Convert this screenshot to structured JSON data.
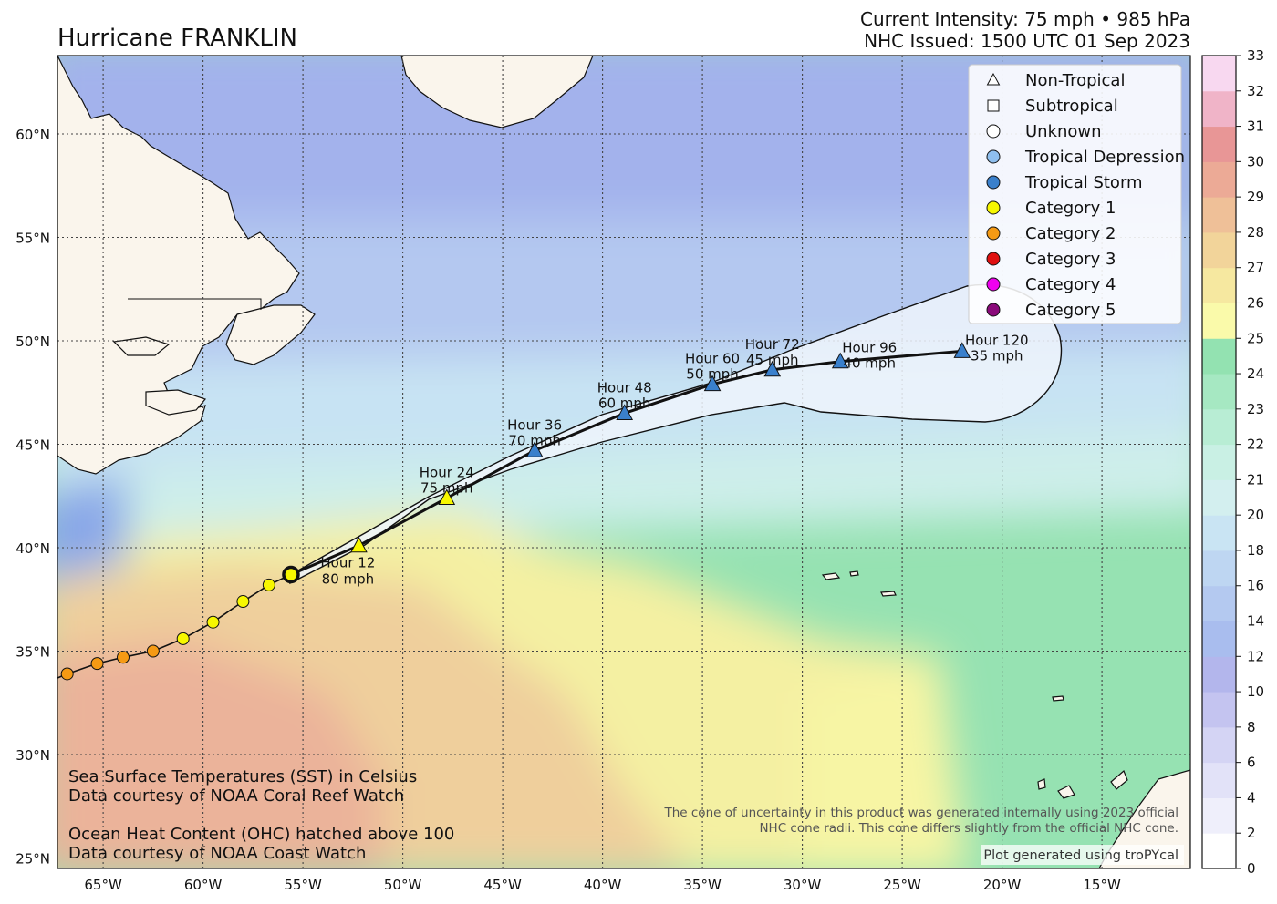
{
  "title": "Hurricane FRANKLIN",
  "intensity": "Current Intensity: 75 mph • 985 hPa",
  "issued": "NHC Issued: 1500 UTC 01 Sep 2023",
  "lat_labels": [
    "60°N",
    "55°N",
    "50°N",
    "45°N",
    "40°N",
    "35°N",
    "30°N",
    "25°N"
  ],
  "lon_labels": [
    "65°W",
    "60°W",
    "55°W",
    "50°W",
    "45°W",
    "40°W",
    "35°W",
    "30°W",
    "25°W",
    "20°W",
    "15°W"
  ],
  "legend": [
    {
      "label": "Non-Tropical",
      "symbol": "triangle-open",
      "color": "#ffffff"
    },
    {
      "label": "Subtropical",
      "symbol": "square-open",
      "color": "#ffffff"
    },
    {
      "label": "Unknown",
      "symbol": "circle-open",
      "color": "#ffffff"
    },
    {
      "label": "Tropical Depression",
      "symbol": "circle",
      "color": "#8fbfee"
    },
    {
      "label": "Tropical Storm",
      "symbol": "circle",
      "color": "#3a80cc"
    },
    {
      "label": "Category 1",
      "symbol": "circle",
      "color": "#f7f700"
    },
    {
      "label": "Category 2",
      "symbol": "circle",
      "color": "#f59a14"
    },
    {
      "label": "Category 3",
      "symbol": "circle",
      "color": "#e01010"
    },
    {
      "label": "Category 4",
      "symbol": "circle",
      "color": "#f000f0"
    },
    {
      "label": "Category 5",
      "symbol": "circle",
      "color": "#8a0a7a"
    }
  ],
  "forecast": [
    {
      "hour": "Hour 12",
      "wind": "80 mph",
      "lon": -52.2,
      "lat": 40.1,
      "cat": "Category 1"
    },
    {
      "hour": "Hour 24",
      "wind": "75 mph",
      "lon": -47.8,
      "lat": 42.4,
      "cat": "Category 1"
    },
    {
      "hour": "Hour 36",
      "wind": "70 mph",
      "lon": -43.4,
      "lat": 44.7,
      "cat": "Tropical Storm"
    },
    {
      "hour": "Hour 48",
      "wind": "60 mph",
      "lon": -38.9,
      "lat": 46.5,
      "cat": "Tropical Storm"
    },
    {
      "hour": "Hour 60",
      "wind": "50 mph",
      "lon": -34.5,
      "lat": 47.9,
      "cat": "Tropical Storm"
    },
    {
      "hour": "Hour 72",
      "wind": "45 mph",
      "lon": -31.5,
      "lat": 48.6,
      "cat": "Tropical Storm"
    },
    {
      "hour": "Hour 96",
      "wind": "40 mph",
      "lon": -28.1,
      "lat": 49.0,
      "cat": "Tropical Storm"
    },
    {
      "hour": "Hour 120",
      "wind": "35 mph",
      "lon": -22.0,
      "lat": 49.5,
      "cat": "Tropical Storm"
    }
  ],
  "current_position": {
    "lon": -55.6,
    "lat": 38.7
  },
  "past_track": [
    {
      "lon": -66.8,
      "lat": 33.9,
      "cat": "Category 2"
    },
    {
      "lon": -65.3,
      "lat": 34.4,
      "cat": "Category 2"
    },
    {
      "lon": -64.0,
      "lat": 34.7,
      "cat": "Category 2"
    },
    {
      "lon": -62.5,
      "lat": 35.0,
      "cat": "Category 2"
    },
    {
      "lon": -61.0,
      "lat": 35.6,
      "cat": "Category 1"
    },
    {
      "lon": -59.5,
      "lat": 36.4,
      "cat": "Category 1"
    },
    {
      "lon": -58.0,
      "lat": 37.4,
      "cat": "Category 1"
    },
    {
      "lon": -56.7,
      "lat": 38.2,
      "cat": "Category 1"
    }
  ],
  "colorbar": {
    "ticks": [
      "0",
      "2",
      "4",
      "6",
      "8",
      "10",
      "12",
      "14",
      "16",
      "18",
      "20",
      "21",
      "22",
      "23",
      "24",
      "25",
      "26",
      "27",
      "28",
      "29",
      "30",
      "31",
      "32",
      "33"
    ],
    "colors": [
      "#ffffff",
      "#efeffb",
      "#e2e2f8",
      "#d4d4f4",
      "#c4c4f0",
      "#b3b6ec",
      "#a9bdee",
      "#b4c9f0",
      "#bed6f2",
      "#c9e4f3",
      "#d3efef",
      "#c9f0e4",
      "#b8edd4",
      "#a6e8c2",
      "#93e2b1",
      "#fafaaa",
      "#f6e8a0",
      "#f2d49a",
      "#efc098",
      "#ecaa96",
      "#e89696",
      "#f0b4c8",
      "#f8d8f0"
    ]
  },
  "notes": {
    "sst": "Sea Surface Temperatures (SST) in Celsius",
    "sst_src": "Data courtesy of NOAA Coral Reef Watch",
    "ohc": "Ocean Heat Content (OHC) hatched above 100",
    "ohc_src": "Data courtesy of NOAA Coast Watch",
    "cone1": "The cone of uncertainty in this product was generated internally using 2023 official",
    "cone2": "NHC cone radii. This cone differs slightly from the official NHC cone.",
    "credit": "Plot generated using troPYcal"
  }
}
